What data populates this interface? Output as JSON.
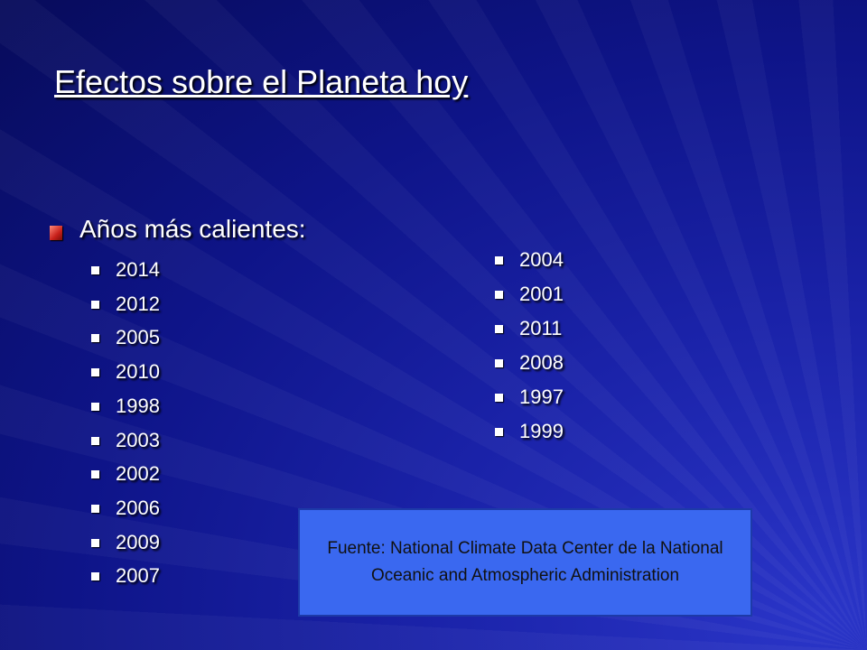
{
  "slide": {
    "title": "Efectos sobre el Planeta hoy",
    "heading": "Años más calientes:",
    "list_left": [
      "2014",
      "2012",
      "2005",
      "2010",
      "1998",
      "2003",
      "2002",
      "2006",
      "2009",
      "2007"
    ],
    "list_right": [
      "2004",
      "2001",
      "2011",
      "2008",
      "1997",
      "1999"
    ],
    "source": "Fuente: National Climate Data Center de la National Oceanic and Atmospheric Administration"
  }
}
